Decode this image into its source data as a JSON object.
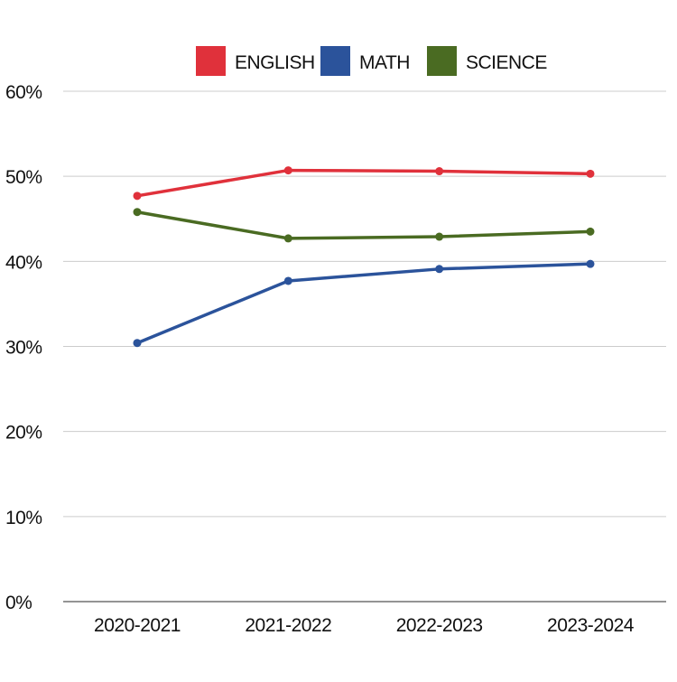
{
  "chart_data": {
    "type": "line",
    "categories": [
      "2020-2021",
      "2021-2022",
      "2022-2023",
      "2023-2024"
    ],
    "series": [
      {
        "name": "ENGLISH",
        "color": "#e0313b",
        "values": [
          47.7,
          50.7,
          50.6,
          50.3
        ]
      },
      {
        "name": "MATH",
        "color": "#2b539b",
        "values": [
          30.4,
          37.7,
          39.1,
          39.7
        ]
      },
      {
        "name": "SCIENCE",
        "color": "#4a6b22",
        "values": [
          45.8,
          42.7,
          42.9,
          43.5
        ]
      }
    ],
    "ylim": [
      0,
      60
    ],
    "yticks": [
      0,
      10,
      20,
      30,
      40,
      50,
      60
    ],
    "ytick_labels": [
      "0%",
      "10%",
      "20%",
      "30%",
      "40%",
      "50%",
      "60%"
    ],
    "grid": true,
    "legend_position": "top-center",
    "gridline_color": "#cccccc",
    "axis_color": "#555555"
  }
}
